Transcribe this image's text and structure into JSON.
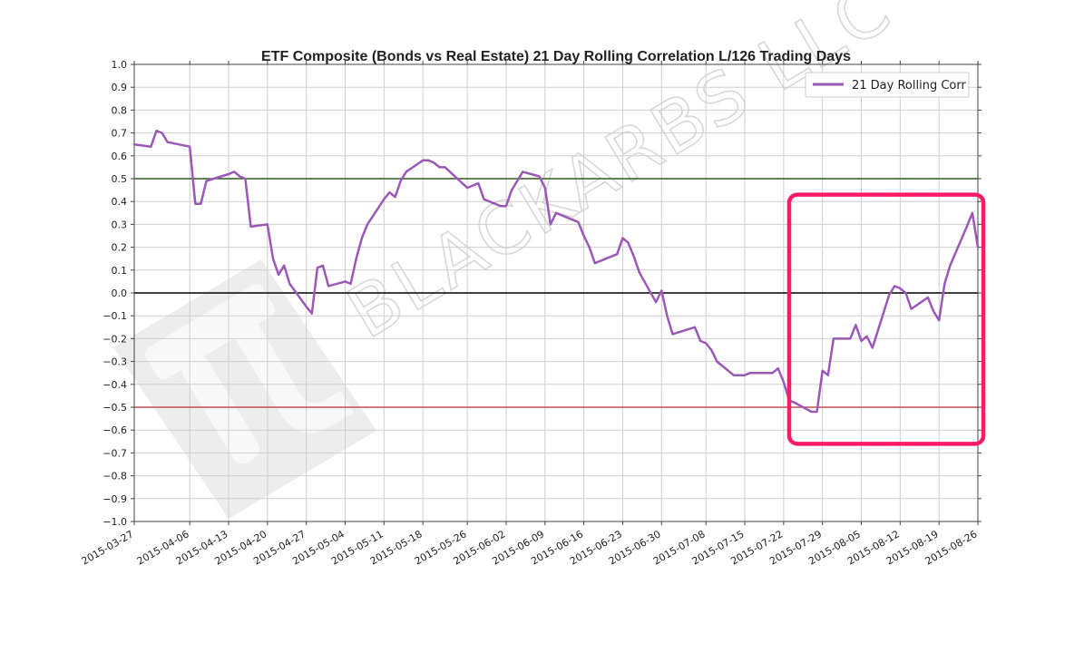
{
  "chart_data": {
    "type": "line",
    "title": "ETF Composite (Bonds vs Real Estate) 21 Day Rolling Correlation L/126 Trading Days",
    "xlabel": "",
    "ylabel": "",
    "ylim": [
      -1.0,
      1.0
    ],
    "xlim": [
      "2015-03-27",
      "2015-08-26"
    ],
    "grid": true,
    "legend_position": "top-right",
    "y_ticks": [
      "1.0",
      "0.9",
      "0.8",
      "0.7",
      "0.6",
      "0.5",
      "0.4",
      "0.3",
      "0.2",
      "0.1",
      "0.0",
      "−0.1",
      "−0.2",
      "−0.3",
      "−0.4",
      "−0.5",
      "−0.6",
      "−0.7",
      "−0.8",
      "−0.9",
      "−1.0"
    ],
    "x_ticks": [
      "2015-03-27",
      "2015-04-06",
      "2015-04-13",
      "2015-04-20",
      "2015-04-27",
      "2015-05-04",
      "2015-05-11",
      "2015-05-18",
      "2015-05-26",
      "2015-06-02",
      "2015-06-09",
      "2015-06-16",
      "2015-06-23",
      "2015-06-30",
      "2015-07-08",
      "2015-07-15",
      "2015-07-22",
      "2015-07-29",
      "2015-08-05",
      "2015-08-12",
      "2015-08-19",
      "2015-08-26"
    ],
    "reference_lines": [
      {
        "y": 0.5,
        "color": "#2e5a1e"
      },
      {
        "y": 0.0,
        "color": "#000000"
      },
      {
        "y": -0.5,
        "color": "#c44e52"
      }
    ],
    "series": [
      {
        "name": "21 Day Rolling Corr",
        "color": "#9b59b6",
        "points": [
          [
            "2015-03-27",
            0.65
          ],
          [
            "2015-03-30",
            0.64
          ],
          [
            "2015-03-31",
            0.71
          ],
          [
            "2015-04-01",
            0.7
          ],
          [
            "2015-04-02",
            0.66
          ],
          [
            "2015-04-06",
            0.64
          ],
          [
            "2015-04-07",
            0.39
          ],
          [
            "2015-04-08",
            0.39
          ],
          [
            "2015-04-09",
            0.49
          ],
          [
            "2015-04-13",
            0.52
          ],
          [
            "2015-04-14",
            0.53
          ],
          [
            "2015-04-15",
            0.51
          ],
          [
            "2015-04-16",
            0.5
          ],
          [
            "2015-04-17",
            0.29
          ],
          [
            "2015-04-20",
            0.3
          ],
          [
            "2015-04-21",
            0.15
          ],
          [
            "2015-04-22",
            0.08
          ],
          [
            "2015-04-23",
            0.12
          ],
          [
            "2015-04-24",
            0.04
          ],
          [
            "2015-04-27",
            -0.06
          ],
          [
            "2015-04-28",
            -0.09
          ],
          [
            "2015-04-29",
            0.11
          ],
          [
            "2015-04-30",
            0.12
          ],
          [
            "2015-05-01",
            0.03
          ],
          [
            "2015-05-04",
            0.05
          ],
          [
            "2015-05-05",
            0.04
          ],
          [
            "2015-05-06",
            0.15
          ],
          [
            "2015-05-07",
            0.24
          ],
          [
            "2015-05-08",
            0.3
          ],
          [
            "2015-05-11",
            0.41
          ],
          [
            "2015-05-12",
            0.44
          ],
          [
            "2015-05-13",
            0.42
          ],
          [
            "2015-05-14",
            0.49
          ],
          [
            "2015-05-15",
            0.53
          ],
          [
            "2015-05-18",
            0.58
          ],
          [
            "2015-05-19",
            0.58
          ],
          [
            "2015-05-20",
            0.57
          ],
          [
            "2015-05-21",
            0.55
          ],
          [
            "2015-05-22",
            0.55
          ],
          [
            "2015-05-26",
            0.46
          ],
          [
            "2015-05-27",
            0.47
          ],
          [
            "2015-05-28",
            0.48
          ],
          [
            "2015-05-29",
            0.41
          ],
          [
            "2015-06-01",
            0.38
          ],
          [
            "2015-06-02",
            0.38
          ],
          [
            "2015-06-03",
            0.45
          ],
          [
            "2015-06-04",
            0.49
          ],
          [
            "2015-06-05",
            0.53
          ],
          [
            "2015-06-08",
            0.51
          ],
          [
            "2015-06-09",
            0.46
          ],
          [
            "2015-06-10",
            0.3
          ],
          [
            "2015-06-11",
            0.35
          ],
          [
            "2015-06-12",
            0.34
          ],
          [
            "2015-06-15",
            0.31
          ],
          [
            "2015-06-16",
            0.25
          ],
          [
            "2015-06-17",
            0.2
          ],
          [
            "2015-06-18",
            0.13
          ],
          [
            "2015-06-19",
            0.14
          ],
          [
            "2015-06-22",
            0.17
          ],
          [
            "2015-06-23",
            0.24
          ],
          [
            "2015-06-24",
            0.22
          ],
          [
            "2015-06-25",
            0.16
          ],
          [
            "2015-06-26",
            0.09
          ],
          [
            "2015-06-29",
            -0.04
          ],
          [
            "2015-06-30",
            0.01
          ],
          [
            "2015-07-01",
            -0.1
          ],
          [
            "2015-07-02",
            -0.18
          ],
          [
            "2015-07-06",
            -0.15
          ],
          [
            "2015-07-07",
            -0.21
          ],
          [
            "2015-07-08",
            -0.22
          ],
          [
            "2015-07-09",
            -0.25
          ],
          [
            "2015-07-10",
            -0.3
          ],
          [
            "2015-07-13",
            -0.36
          ],
          [
            "2015-07-14",
            -0.36
          ],
          [
            "2015-07-15",
            -0.36
          ],
          [
            "2015-07-16",
            -0.35
          ],
          [
            "2015-07-17",
            -0.35
          ],
          [
            "2015-07-20",
            -0.35
          ],
          [
            "2015-07-21",
            -0.33
          ],
          [
            "2015-07-22",
            -0.39
          ],
          [
            "2015-07-23",
            -0.47
          ],
          [
            "2015-07-24",
            -0.48
          ],
          [
            "2015-07-27",
            -0.52
          ],
          [
            "2015-07-28",
            -0.52
          ],
          [
            "2015-07-29",
            -0.34
          ],
          [
            "2015-07-30",
            -0.36
          ],
          [
            "2015-07-31",
            -0.2
          ],
          [
            "2015-08-03",
            -0.2
          ],
          [
            "2015-08-04",
            -0.14
          ],
          [
            "2015-08-05",
            -0.21
          ],
          [
            "2015-08-06",
            -0.19
          ],
          [
            "2015-08-07",
            -0.24
          ],
          [
            "2015-08-10",
            -0.01
          ],
          [
            "2015-08-11",
            0.03
          ],
          [
            "2015-08-12",
            0.02
          ],
          [
            "2015-08-13",
            0.0
          ],
          [
            "2015-08-14",
            -0.07
          ],
          [
            "2015-08-17",
            -0.02
          ],
          [
            "2015-08-18",
            -0.08
          ],
          [
            "2015-08-19",
            -0.12
          ],
          [
            "2015-08-20",
            0.04
          ],
          [
            "2015-08-21",
            0.12
          ],
          [
            "2015-08-24",
            0.29
          ],
          [
            "2015-08-25",
            0.35
          ],
          [
            "2015-08-26",
            0.2
          ]
        ]
      }
    ],
    "highlight_box": {
      "x_start": "2015-07-23",
      "x_end": "2015-08-27",
      "y_top": 0.43,
      "y_bottom": -0.66,
      "color": "#ff1a66"
    }
  },
  "watermark": {
    "text": "BLACKARBS LLC",
    "logo": "pi-icon"
  }
}
